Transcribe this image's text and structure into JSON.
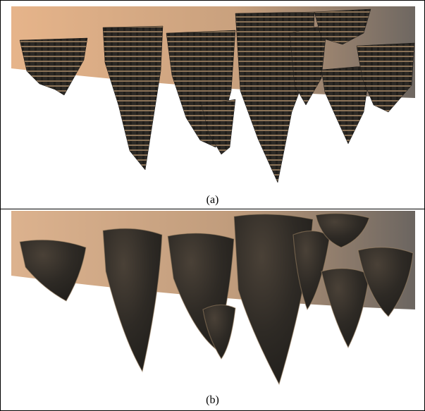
{
  "figure": {
    "panels": [
      {
        "caption": "(a)",
        "style": "voxel"
      },
      {
        "caption": "(b)",
        "style": "smoothed"
      }
    ],
    "colors": {
      "sky_light": "#e2b088",
      "sky_dark": "#6f6761",
      "rock_dark": "#2d2a26",
      "rock_highlight": "#a58a68",
      "background": "#ffffff"
    }
  }
}
